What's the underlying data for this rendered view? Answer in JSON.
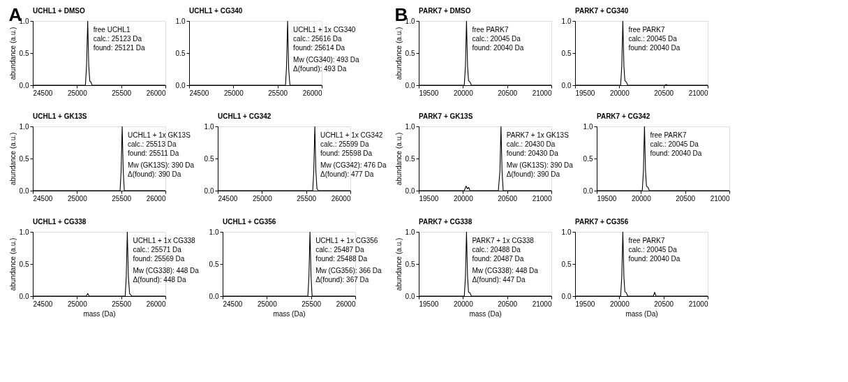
{
  "chart_data": [
    {
      "type": "line",
      "title": "UCHL1 + DMSO",
      "ylabel": "abundance (a.u.)",
      "annotations": [
        "A",
        "free UCHL1\ncalc.: 25123 Da\nfound: 25121 Da"
      ],
      "x": [
        24500,
        25095,
        25108,
        25121,
        25133,
        25145,
        25158,
        25170,
        26000
      ],
      "series": [
        {
          "color": "#000000",
          "values": [
            0,
            0,
            0.3,
            1,
            0.3,
            0.06,
            0.05,
            0,
            0
          ]
        }
      ],
      "xlim": [
        24500,
        26000
      ],
      "xticks": [
        24500,
        25000,
        25500,
        26000
      ],
      "ylim": [
        0,
        1
      ],
      "yticks": [
        {
          "value": 0,
          "label": "0.0"
        },
        {
          "value": 0.5,
          "label": "0.5"
        },
        {
          "value": 1,
          "label": "1.0"
        }
      ],
      "grid": false,
      "legend": false
    },
    {
      "type": "line",
      "title": "UCHL1 + CG340",
      "annotations": [
        "UCHL1 + 1x CG340\ncalc.: 25616 Da\nfound: 25614 Da",
        "Mw (CG340): 493 Da\nΔ(found): 493 Da"
      ],
      "x": [
        24500,
        25590,
        25602,
        25614,
        25626,
        25640,
        26000
      ],
      "series": [
        {
          "color": "#000000",
          "values": [
            0,
            0,
            0.3,
            1,
            0.25,
            0,
            0
          ]
        }
      ],
      "xlim": [
        24500,
        26000
      ],
      "xticks": [
        24500,
        25000,
        25500,
        26000
      ],
      "ylim": [
        0,
        1
      ],
      "yticks": [
        {
          "value": 0,
          "label": "0.0"
        },
        {
          "value": 0.5,
          "label": "0.5"
        },
        {
          "value": 1,
          "label": "1.0"
        }
      ],
      "grid": false,
      "legend": false
    },
    {
      "type": "line",
      "title": "PARK7 + DMSO",
      "ylabel": "abundance (a.u.)",
      "annotations": [
        "B",
        "free PARK7\ncalc.: 20045 Da\nfound: 20040 Da"
      ],
      "x": [
        19500,
        20015,
        20028,
        20040,
        20052,
        20063,
        20080,
        20095,
        21000
      ],
      "series": [
        {
          "color": "#000000",
          "values": [
            0,
            0,
            0.3,
            1,
            0.3,
            0.07,
            0.05,
            0,
            0
          ]
        }
      ],
      "xlim": [
        19500,
        21000
      ],
      "xticks": [
        19500,
        20000,
        20500,
        21000
      ],
      "ylim": [
        0,
        1
      ],
      "yticks": [
        {
          "value": 0,
          "label": "0.0"
        },
        {
          "value": 0.5,
          "label": "0.5"
        },
        {
          "value": 1,
          "label": "1.0"
        }
      ],
      "grid": false,
      "legend": false
    },
    {
      "type": "line",
      "title": "PARK7 + CG340",
      "annotations": [
        "free PARK7\ncalc.: 20045 Da\nfound: 20040 Da"
      ],
      "x": [
        19500,
        20015,
        20028,
        20040,
        20052,
        20063,
        20080,
        20095,
        20515,
        20530,
        20545,
        21000
      ],
      "series": [
        {
          "color": "#000000",
          "values": [
            0,
            0,
            0.3,
            1,
            0.3,
            0.07,
            0.05,
            0,
            0,
            0.01,
            0,
            0
          ]
        }
      ],
      "xlim": [
        19500,
        21000
      ],
      "xticks": [
        19500,
        20000,
        20500,
        21000
      ],
      "ylim": [
        0,
        1
      ],
      "yticks": [
        {
          "value": 0,
          "label": "0.0"
        },
        {
          "value": 0.5,
          "label": "0.5"
        },
        {
          "value": 1,
          "label": "1.0"
        }
      ],
      "grid": false,
      "legend": false
    },
    {
      "type": "line",
      "title": "UCHL1 + GK13S",
      "ylabel": "abundance (a.u.)",
      "annotations": [
        "UCHL1 + 1x GK13S\ncalc.: 25513 Da\nfound: 25511 Da",
        "Mw (GK13S): 390 Da\nΔ(found): 390 Da"
      ],
      "x": [
        24500,
        25487,
        25499,
        25511,
        25523,
        25535,
        26000
      ],
      "series": [
        {
          "color": "#000000",
          "values": [
            0,
            0,
            0.3,
            1,
            0.3,
            0,
            0
          ]
        }
      ],
      "xlim": [
        24500,
        26000
      ],
      "xticks": [
        24500,
        25000,
        25500,
        26000
      ],
      "ylim": [
        0,
        1
      ],
      "yticks": [
        {
          "value": 0,
          "label": "0.0"
        },
        {
          "value": 0.5,
          "label": "0.5"
        },
        {
          "value": 1,
          "label": "1.0"
        }
      ],
      "grid": false,
      "legend": false
    },
    {
      "type": "line",
      "title": "UCHL1 + CG342",
      "annotations": [
        "UCHL1 + 1x CG342\ncalc.: 25599 Da\nfound: 25598 Da",
        "Mw (CG342): 476 Da\nΔ(found): 477 Da"
      ],
      "x": [
        24500,
        25574,
        25586,
        25598,
        25610,
        25622,
        25640,
        26000
      ],
      "series": [
        {
          "color": "#000000",
          "values": [
            0,
            0,
            0.3,
            1,
            0.3,
            0.03,
            0,
            0
          ]
        }
      ],
      "xlim": [
        24500,
        26000
      ],
      "xticks": [
        24500,
        25000,
        25500,
        26000
      ],
      "ylim": [
        0,
        1
      ],
      "yticks": [
        {
          "value": 0,
          "label": "0.0"
        },
        {
          "value": 0.5,
          "label": "0.5"
        },
        {
          "value": 1,
          "label": "1.0"
        }
      ],
      "grid": false,
      "legend": false
    },
    {
      "type": "line",
      "title": "PARK7 + GK13S",
      "ylabel": "abundance (a.u.)",
      "annotations": [
        "PARK7 + 1x GK13S\ncalc.: 20430 Da\nfound: 20430 Da",
        "Mw (GK13S): 390 Da\nΔ(found): 390 Da"
      ],
      "x": [
        19500,
        20015,
        20035,
        20050,
        20065,
        20080,
        20400,
        20418,
        20430,
        20442,
        20455,
        21000
      ],
      "series": [
        {
          "color": "#000000",
          "values": [
            0,
            0,
            0.07,
            0.03,
            0.05,
            0,
            0,
            0.3,
            1,
            0.3,
            0,
            0
          ]
        }
      ],
      "xlim": [
        19500,
        21000
      ],
      "xticks": [
        19500,
        20000,
        20500,
        21000
      ],
      "ylim": [
        0,
        1
      ],
      "yticks": [
        {
          "value": 0,
          "label": "0.0"
        },
        {
          "value": 0.5,
          "label": "0.5"
        },
        {
          "value": 1,
          "label": "1.0"
        }
      ],
      "grid": false,
      "legend": false
    },
    {
      "type": "line",
      "title": "PARK7 + CG342",
      "annotations": [
        "free PARK7\ncalc.: 20045 Da\nfound: 20040 Da"
      ],
      "x": [
        19500,
        20015,
        20028,
        20040,
        20052,
        20063,
        20080,
        20095,
        21000
      ],
      "series": [
        {
          "color": "#000000",
          "values": [
            0,
            0,
            0.3,
            1,
            0.3,
            0.07,
            0.05,
            0,
            0
          ]
        }
      ],
      "xlim": [
        19500,
        21000
      ],
      "xticks": [
        19500,
        20000,
        20500,
        21000
      ],
      "ylim": [
        0,
        1
      ],
      "yticks": [
        {
          "value": 0,
          "label": "0.0"
        },
        {
          "value": 0.5,
          "label": "0.5"
        },
        {
          "value": 1,
          "label": "1.0"
        }
      ],
      "grid": false,
      "legend": false
    },
    {
      "type": "line",
      "title": "UCHL1 + CG338",
      "ylabel": "abundance (a.u.)",
      "xlabel": "mass (Da)",
      "annotations": [
        "UCHL1 + 1x CG338\ncalc.: 25571 Da\nfound: 25569 Da",
        "Mw (CG338): 448 Da\nΔ(found): 448 Da"
      ],
      "x": [
        24500,
        25105,
        25121,
        25137,
        25545,
        25557,
        25569,
        25581,
        25595,
        25620,
        26000
      ],
      "series": [
        {
          "color": "#000000",
          "values": [
            0,
            0,
            0.04,
            0,
            0,
            0.3,
            1,
            0.3,
            0.04,
            0,
            0
          ]
        }
      ],
      "xlim": [
        24500,
        26000
      ],
      "xticks": [
        24500,
        25000,
        25500,
        26000
      ],
      "ylim": [
        0,
        1
      ],
      "yticks": [
        {
          "value": 0,
          "label": "0.0"
        },
        {
          "value": 0.5,
          "label": "0.5"
        },
        {
          "value": 1,
          "label": "1.0"
        }
      ],
      "grid": false,
      "legend": false
    },
    {
      "type": "line",
      "title": "UCHL1 + CG356",
      "xlabel": "mass (Da)",
      "annotations": [
        "UCHL1 + 1x CG356\ncalc.: 25487 Da\nfound: 25488 Da",
        "Mw (CG356): 366 Da\nΔ(found): 367 Da"
      ],
      "x": [
        24500,
        25464,
        25476,
        25488,
        25500,
        25512,
        26000
      ],
      "series": [
        {
          "color": "#000000",
          "values": [
            0,
            0,
            0.3,
            1,
            0.3,
            0,
            0
          ]
        }
      ],
      "xlim": [
        24500,
        26000
      ],
      "xticks": [
        24500,
        25000,
        25500,
        26000
      ],
      "ylim": [
        0,
        1
      ],
      "yticks": [
        {
          "value": 0,
          "label": "0.0"
        },
        {
          "value": 0.5,
          "label": "0.5"
        },
        {
          "value": 1,
          "label": "1.0"
        }
      ],
      "grid": false,
      "legend": false
    },
    {
      "type": "line",
      "title": "PARK7 + CG338",
      "ylabel": "abundance (a.u.)",
      "xlabel": "mass (Da)",
      "annotations": [
        "PARK7 + 1x CG338\ncalc.: 20488 Da\nfound: 20487 Da",
        "Mw (CG338): 448 Da\nΔ(found): 447 Da"
      ],
      "x": [
        19500,
        20015,
        20028,
        20040,
        20052,
        20063,
        20080,
        20095,
        21000
      ],
      "series": [
        {
          "color": "#000000",
          "values": [
            0,
            0,
            0.3,
            1,
            0.3,
            0.06,
            0.05,
            0,
            0
          ]
        }
      ],
      "xlim": [
        19500,
        21000
      ],
      "xticks": [
        19500,
        20000,
        20500,
        21000
      ],
      "ylim": [
        0,
        1
      ],
      "yticks": [
        {
          "value": 0,
          "label": "0.0"
        },
        {
          "value": 0.5,
          "label": "0.5"
        },
        {
          "value": 1,
          "label": "1.0"
        }
      ],
      "grid": false,
      "legend": false
    },
    {
      "type": "line",
      "title": "PARK7 + CG356",
      "xlabel": "mass (Da)",
      "annotations": [
        "free PARK7\ncalc.: 20045 Da\nfound: 20040 Da"
      ],
      "x": [
        19500,
        20015,
        20028,
        20040,
        20052,
        20063,
        20080,
        20095,
        20385,
        20400,
        20415,
        21000
      ],
      "series": [
        {
          "color": "#000000",
          "values": [
            0,
            0,
            0.3,
            1,
            0.3,
            0.07,
            0.05,
            0,
            0,
            0.06,
            0,
            0
          ]
        }
      ],
      "xlim": [
        19500,
        21000
      ],
      "xticks": [
        19500,
        20000,
        20500,
        21000
      ],
      "ylim": [
        0,
        1
      ],
      "yticks": [
        {
          "value": 0,
          "label": "0.0"
        },
        {
          "value": 0.5,
          "label": "0.5"
        },
        {
          "value": 1,
          "label": "1.0"
        }
      ],
      "grid": false,
      "legend": false
    }
  ]
}
